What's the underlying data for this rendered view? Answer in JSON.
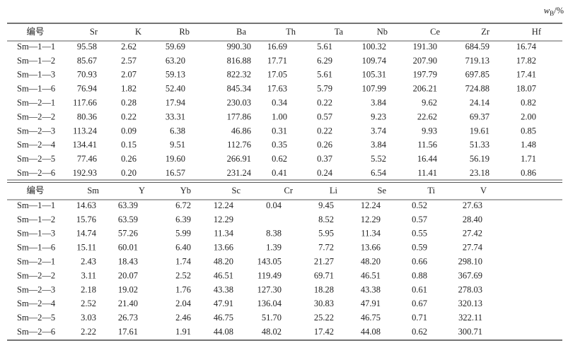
{
  "unit": {
    "symbol": "w",
    "sub": "B",
    "suffix": "/%"
  },
  "tables": [
    {
      "header": [
        "编号",
        "Sr",
        "K",
        "Rb",
        "Ba",
        "Th",
        "Ta",
        "Nb",
        "Ce",
        "Zr",
        "Hf"
      ],
      "rows": [
        [
          "Sm—1—1",
          "95.58",
          "2.62",
          "59.69",
          "990.30",
          "16.69",
          "5.61",
          "100.32",
          "191.30",
          "684.59",
          "16.74"
        ],
        [
          "Sm—1—2",
          "85.67",
          "2.57",
          "63.20",
          "816.88",
          "17.71",
          "6.29",
          "109.74",
          "207.90",
          "719.13",
          "17.82"
        ],
        [
          "Sm—1—3",
          "70.93",
          "2.07",
          "59.13",
          "822.32",
          "17.05",
          "5.61",
          "105.31",
          "197.79",
          "697.85",
          "17.41"
        ],
        [
          "Sm—1—6",
          "76.94",
          "1.82",
          "52.40",
          "845.34",
          "17.63",
          "5.79",
          "107.99",
          "206.21",
          "724.88",
          "18.07"
        ],
        [
          "Sm—2—1",
          "117.66",
          "0.28",
          "17.94",
          "230.03",
          "0.34",
          "0.22",
          "3.84",
          "9.62",
          "24.14",
          "0.82"
        ],
        [
          "Sm—2—2",
          "80.36",
          "0.22",
          "33.31",
          "177.86",
          "1.00",
          "0.57",
          "9.23",
          "22.62",
          "69.37",
          "2.00"
        ],
        [
          "Sm—2—3",
          "113.24",
          "0.09",
          "6.38",
          "46.86",
          "0.31",
          "0.22",
          "3.74",
          "9.93",
          "19.61",
          "0.85"
        ],
        [
          "Sm—2—4",
          "134.41",
          "0.15",
          "9.51",
          "112.76",
          "0.35",
          "0.26",
          "3.84",
          "11.56",
          "51.33",
          "1.48"
        ],
        [
          "Sm—2—5",
          "77.46",
          "0.26",
          "19.60",
          "266.91",
          "0.62",
          "0.37",
          "5.52",
          "16.44",
          "56.19",
          "1.71"
        ],
        [
          "Sm—2—6",
          "192.93",
          "0.20",
          "16.57",
          "231.24",
          "0.41",
          "0.24",
          "6.54",
          "11.41",
          "23.18",
          "0.86"
        ]
      ]
    },
    {
      "header": [
        "编号",
        "Sm",
        "Y",
        "Yb",
        "Sc",
        "Cr",
        "Li",
        "Se",
        "Ti",
        "V"
      ],
      "rows": [
        [
          "Sm—1—1",
          "14.63",
          "63.39",
          "6.72",
          "12.24",
          "0.04",
          "9.45",
          "12.24",
          "0.52",
          "27.63"
        ],
        [
          "Sm—1—2",
          "15.76",
          "63.59",
          "6.39",
          "12.29",
          null,
          "8.52",
          "12.29",
          "0.57",
          "28.40"
        ],
        [
          "Sm—1—3",
          "14.74",
          "57.26",
          "5.99",
          "11.34",
          "8.38",
          "5.95",
          "11.34",
          "0.55",
          "27.42"
        ],
        [
          "Sm—1—6",
          "15.11",
          "60.01",
          "6.40",
          "13.66",
          "1.39",
          "7.72",
          "13.66",
          "0.59",
          "27.74"
        ],
        [
          "Sm—2—1",
          "2.43",
          "18.43",
          "1.74",
          "48.20",
          "143.05",
          "21.27",
          "48.20",
          "0.66",
          "298.10"
        ],
        [
          "Sm—2—2",
          "3.11",
          "20.07",
          "2.52",
          "46.51",
          "119.49",
          "69.71",
          "46.51",
          "0.88",
          "367.69"
        ],
        [
          "Sm—2—3",
          "2.18",
          "19.02",
          "1.76",
          "43.38",
          "127.30",
          "18.28",
          "43.38",
          "0.61",
          "278.03"
        ],
        [
          "Sm—2—4",
          "2.52",
          "21.40",
          "2.04",
          "47.91",
          "136.04",
          "30.83",
          "47.91",
          "0.67",
          "320.13"
        ],
        [
          "Sm—2—5",
          "3.03",
          "26.73",
          "2.46",
          "46.75",
          "51.70",
          "25.22",
          "46.75",
          "0.71",
          "322.11"
        ],
        [
          "Sm—2—6",
          "2.22",
          "17.61",
          "1.91",
          "44.08",
          "48.02",
          "17.42",
          "44.08",
          "0.62",
          "300.71"
        ]
      ]
    }
  ]
}
